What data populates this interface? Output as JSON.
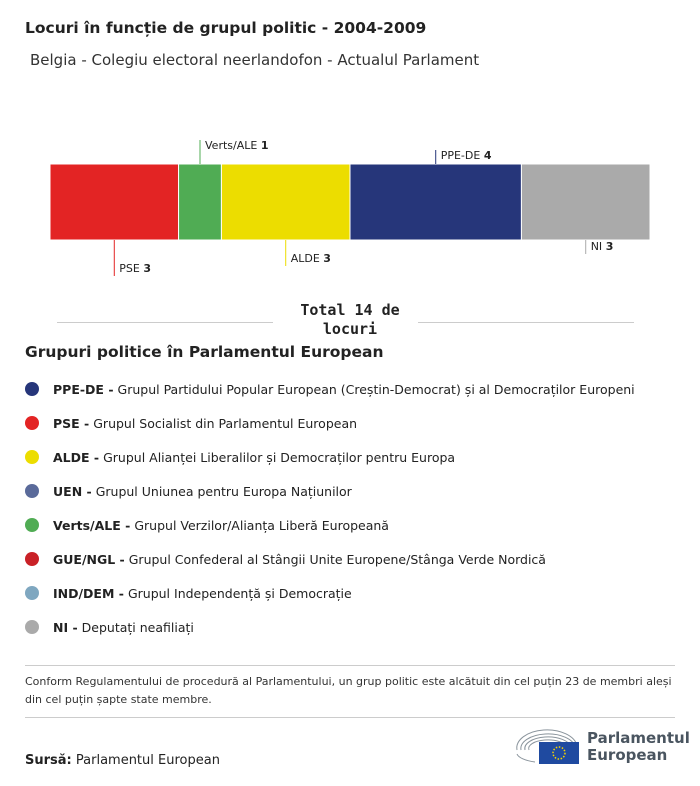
{
  "title": "Locuri în funcție de grupul politic - 2004-2009",
  "subtitle": "Belgia - Colegiu electoral neerlandofon - Actualul Parlament",
  "chart_data": {
    "type": "bar",
    "orientation": "horizontal-stacked",
    "categories": [
      "PSE",
      "Verts/ALE",
      "ALDE",
      "PPE-DE",
      "NI"
    ],
    "values": [
      3,
      1,
      3,
      4,
      3
    ],
    "colors": [
      "#e32424",
      "#50ac54",
      "#ecdd00",
      "#26367a",
      "#aaaaaa"
    ],
    "label_positions": [
      "below",
      "above",
      "below",
      "above",
      "below"
    ],
    "total_label": "Total 14 de locuri"
  },
  "legend": {
    "title": "Grupuri politice în Parlamentul European",
    "items": [
      {
        "abbr": "PPE-DE -",
        "name": "Grupul Partidului Popular European (Creștin-Democrat) și al Democraților Europeni",
        "color": "#26367a"
      },
      {
        "abbr": "PSE -",
        "name": "Grupul Socialist din Parlamentul European",
        "color": "#e32424"
      },
      {
        "abbr": "ALDE -",
        "name": "Grupul Alianței Liberalilor și Democraților pentru Europa",
        "color": "#ecdd00"
      },
      {
        "abbr": "UEN -",
        "name": "Grupul Uniunea pentru Europa Națiunilor",
        "color": "#5a6a9a"
      },
      {
        "abbr": "Verts/ALE -",
        "name": "Grupul Verzilor/Alianța Liberă Europeană",
        "color": "#50ac54"
      },
      {
        "abbr": "GUE/NGL -",
        "name": "Grupul Confederal al Stângii Unite Europene/Stânga Verde Nordică",
        "color": "#c92127"
      },
      {
        "abbr": "IND/DEM -",
        "name": "Grupul Independență și Democrație",
        "color": "#7fa7c0"
      },
      {
        "abbr": "NI -",
        "name": "Deputați neafiliați",
        "color": "#aaaaaa"
      }
    ]
  },
  "note": "Conform Regulamentului de procedură al Parlamentului, un grup politic este alcătuit din cel puțin 23 de membri aleși din cel puțin șapte state membre.",
  "source": {
    "label": "Sursă:",
    "value": "Parlamentul European"
  },
  "logo": {
    "line1": "Parlamentul",
    "line2": "European"
  }
}
